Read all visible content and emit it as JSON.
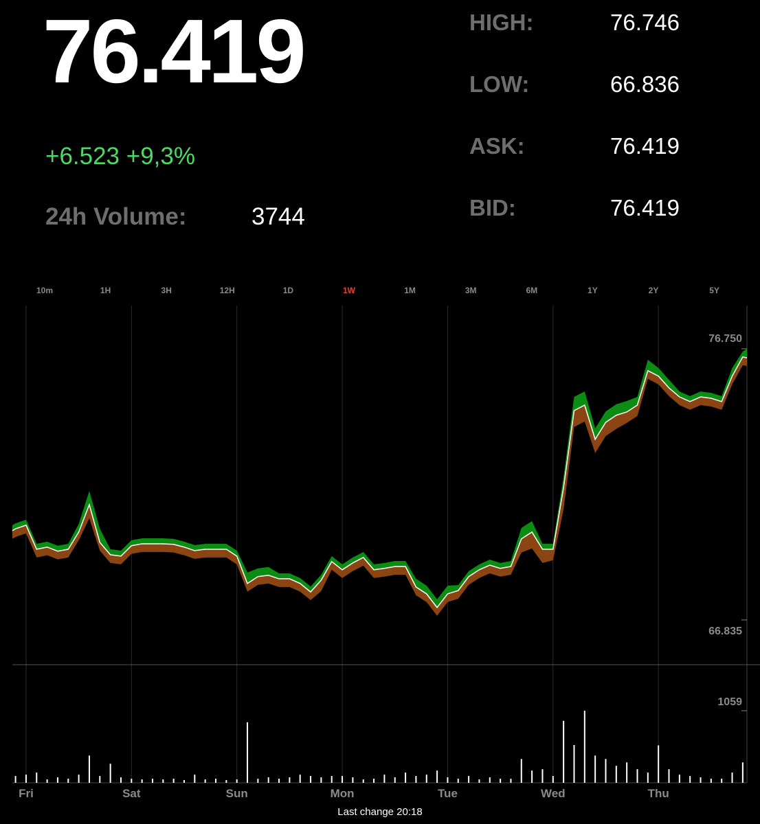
{
  "quote": {
    "price": "76.419",
    "change": "+6.523 +9,3%",
    "volume_label": "24h Volume:",
    "volume": "3744"
  },
  "stats": [
    {
      "label": "HIGH:",
      "value": "76.746"
    },
    {
      "label": "LOW:",
      "value": "66.836"
    },
    {
      "label": "ASK:",
      "value": "76.419"
    },
    {
      "label": "BID:",
      "value": "76.419"
    }
  ],
  "ranges": [
    "10m",
    "1H",
    "3H",
    "12H",
    "1D",
    "1W",
    "1M",
    "3M",
    "6M",
    "1Y",
    "2Y",
    "5Y"
  ],
  "selected_range": 5,
  "footer": "Last change 20:18",
  "chart_data": [
    {
      "type": "line",
      "x": [
        -0.13,
        -0.1,
        0,
        0.1,
        0.2,
        0.3,
        0.4,
        0.5,
        0.6,
        0.7,
        0.8,
        0.9,
        1.0,
        1.1,
        1.2,
        1.3,
        1.4,
        1.5,
        1.6,
        1.7,
        1.8,
        1.9,
        2.0,
        2.1,
        2.2,
        2.3,
        2.4,
        2.5,
        2.6,
        2.7,
        2.8,
        2.9,
        3.0,
        3.1,
        3.2,
        3.3,
        3.4,
        3.5,
        3.6,
        3.7,
        3.8,
        3.9,
        4.0,
        4.1,
        4.2,
        4.3,
        4.4,
        4.5,
        4.6,
        4.7,
        4.8,
        4.9,
        5.0,
        5.1,
        5.2,
        5.3,
        5.4,
        5.5,
        5.6,
        5.7,
        5.8,
        5.9,
        6.0,
        6.1,
        6.2,
        6.3,
        6.4,
        6.5,
        6.6,
        6.7,
        6.8,
        6.84
      ],
      "xlim": [
        -0.13,
        6.84
      ],
      "xticks": [
        {
          "value": 0,
          "label": "Fri"
        },
        {
          "value": 1,
          "label": "Sat"
        },
        {
          "value": 2,
          "label": "Sun"
        },
        {
          "value": 3,
          "label": "Mon"
        },
        {
          "value": 4,
          "label": "Tue"
        },
        {
          "value": 5,
          "label": "Wed"
        },
        {
          "value": 6,
          "label": "Thu"
        }
      ],
      "ylim": [
        65.2,
        78.33
      ],
      "yticks": [
        {
          "value": 76.75,
          "label": "76.750"
        },
        {
          "value": 66.835,
          "label": "66.835"
        }
      ],
      "grid": true,
      "series": [
        {
          "color": "#0b8c12",
          "values": [
            70.3,
            70.37,
            70.5,
            69.62,
            69.7,
            69.55,
            69.62,
            70.35,
            71.55,
            70.17,
            69.42,
            69.37,
            69.75,
            69.82,
            69.82,
            69.82,
            69.8,
            69.7,
            69.57,
            69.62,
            69.62,
            69.62,
            69.37,
            68.57,
            68.72,
            68.77,
            68.54,
            68.54,
            68.37,
            68.06,
            68.49,
            69.17,
            68.87,
            69.12,
            69.32,
            68.87,
            68.92,
            68.99,
            68.99,
            68.34,
            68.09,
            67.59,
            68.09,
            68.11,
            68.62,
            68.87,
            69.04,
            68.92,
            68.99,
            70.2,
            70.45,
            69.62,
            69.62,
            72.08,
            74.99,
            75.19,
            73.84,
            74.46,
            74.72,
            74.84,
            74.99,
            76.35,
            76.05,
            75.62,
            75.19,
            75.02,
            75.19,
            75.14,
            75.02,
            76.05,
            76.65,
            76.75
          ]
        },
        {
          "color": "#8b4513",
          "values": [
            69.8,
            69.87,
            70.0,
            69.12,
            69.2,
            69.05,
            69.12,
            69.75,
            70.55,
            69.37,
            68.92,
            68.87,
            69.25,
            69.32,
            69.32,
            69.32,
            69.3,
            69.2,
            69.07,
            69.12,
            69.12,
            69.12,
            68.87,
            67.87,
            68.12,
            68.17,
            68.04,
            68.04,
            67.87,
            67.56,
            67.89,
            68.67,
            68.37,
            68.62,
            68.82,
            68.37,
            68.42,
            68.49,
            68.49,
            67.74,
            67.49,
            66.99,
            67.49,
            67.61,
            68.12,
            68.37,
            68.54,
            68.42,
            68.49,
            69.3,
            69.45,
            68.92,
            69.02,
            70.88,
            73.89,
            74.09,
            72.94,
            73.56,
            73.82,
            74.04,
            74.29,
            75.65,
            75.45,
            75.02,
            74.69,
            74.52,
            74.69,
            74.64,
            74.52,
            75.45,
            76.15,
            76.12
          ]
        },
        {
          "color": "#ffffff",
          "values": [
            70.1,
            70.17,
            70.3,
            69.42,
            69.5,
            69.35,
            69.42,
            70.05,
            71.05,
            69.67,
            69.22,
            69.17,
            69.55,
            69.62,
            69.62,
            69.62,
            69.6,
            69.5,
            69.37,
            69.42,
            69.42,
            69.42,
            69.17,
            68.17,
            68.42,
            68.47,
            68.34,
            68.34,
            68.17,
            67.86,
            68.29,
            68.97,
            68.67,
            68.92,
            69.12,
            68.67,
            68.72,
            68.79,
            68.79,
            68.04,
            67.79,
            67.29,
            67.79,
            67.91,
            68.42,
            68.67,
            68.84,
            68.72,
            68.79,
            69.8,
            70.05,
            69.42,
            69.42,
            71.68,
            74.49,
            74.69,
            73.44,
            74.06,
            74.32,
            74.44,
            74.69,
            75.95,
            75.75,
            75.32,
            74.99,
            74.82,
            74.99,
            74.94,
            74.82,
            75.75,
            76.45,
            76.42
          ]
        }
      ]
    },
    {
      "type": "bar",
      "x": [
        -0.1,
        0,
        0.1,
        0.2,
        0.3,
        0.4,
        0.5,
        0.6,
        0.7,
        0.8,
        0.9,
        1.0,
        1.1,
        1.2,
        1.3,
        1.4,
        1.5,
        1.6,
        1.7,
        1.8,
        1.9,
        2.0,
        2.1,
        2.2,
        2.3,
        2.4,
        2.5,
        2.6,
        2.7,
        2.8,
        2.9,
        3.0,
        3.1,
        3.2,
        3.3,
        3.4,
        3.5,
        3.6,
        3.7,
        3.8,
        3.9,
        4.0,
        4.1,
        4.2,
        4.3,
        4.4,
        4.5,
        4.6,
        4.7,
        4.8,
        4.9,
        5.0,
        5.1,
        5.2,
        5.3,
        5.4,
        5.5,
        5.6,
        5.7,
        5.8,
        5.9,
        6.0,
        6.1,
        6.2,
        6.3,
        6.4,
        6.5,
        6.6,
        6.7,
        6.8
      ],
      "xlim": [
        -0.13,
        6.84
      ],
      "values": [
        100,
        120,
        150,
        50,
        80,
        60,
        120,
        400,
        100,
        280,
        80,
        60,
        50,
        60,
        50,
        60,
        40,
        120,
        50,
        60,
        40,
        50,
        890,
        60,
        80,
        60,
        80,
        120,
        100,
        80,
        100,
        100,
        80,
        50,
        60,
        120,
        80,
        150,
        100,
        120,
        180,
        80,
        60,
        100,
        50,
        80,
        60,
        60,
        350,
        180,
        200,
        100,
        910,
        555,
        1059,
        400,
        350,
        250,
        300,
        200,
        150,
        550,
        200,
        120,
        100,
        80,
        60,
        60,
        150,
        300
      ],
      "color": "#ffffff",
      "ylim": [
        0,
        1735
      ],
      "yticks": [
        1059
      ]
    }
  ]
}
